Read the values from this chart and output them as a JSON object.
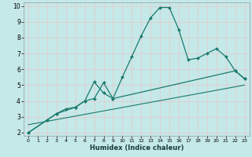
{
  "xlabel": "Humidex (Indice chaleur)",
  "xlim": [
    -0.5,
    23.5
  ],
  "ylim": [
    1.8,
    10.2
  ],
  "yticks": [
    2,
    3,
    4,
    5,
    6,
    7,
    8,
    9,
    10
  ],
  "xticks": [
    0,
    1,
    2,
    3,
    4,
    5,
    6,
    7,
    8,
    9,
    10,
    11,
    12,
    13,
    14,
    15,
    16,
    17,
    18,
    19,
    20,
    21,
    22,
    23
  ],
  "bg_color": "#c5e8e8",
  "grid_color": "#e8c8c8",
  "line_color": "#1a7a6e",
  "line1_x": [
    0,
    2,
    3,
    4,
    5,
    6,
    7,
    8,
    9,
    10,
    11,
    12,
    13,
    14,
    15,
    16,
    17,
    18,
    19,
    20,
    21,
    22,
    23
  ],
  "line1_y": [
    2.0,
    2.8,
    3.2,
    3.5,
    3.6,
    4.0,
    4.15,
    5.15,
    4.15,
    5.5,
    6.8,
    8.1,
    9.25,
    9.9,
    9.9,
    8.5,
    6.6,
    6.7,
    7.0,
    7.3,
    6.8,
    5.9,
    5.4
  ],
  "line2_x": [
    0,
    3,
    5,
    6,
    7,
    8,
    9,
    22,
    23
  ],
  "line2_y": [
    2.0,
    3.2,
    3.6,
    4.0,
    5.2,
    4.5,
    4.15,
    5.9,
    5.4
  ],
  "line3_x": [
    0,
    23
  ],
  "line3_y": [
    2.5,
    5.0
  ],
  "figsize": [
    3.2,
    2.0
  ],
  "dpi": 100
}
